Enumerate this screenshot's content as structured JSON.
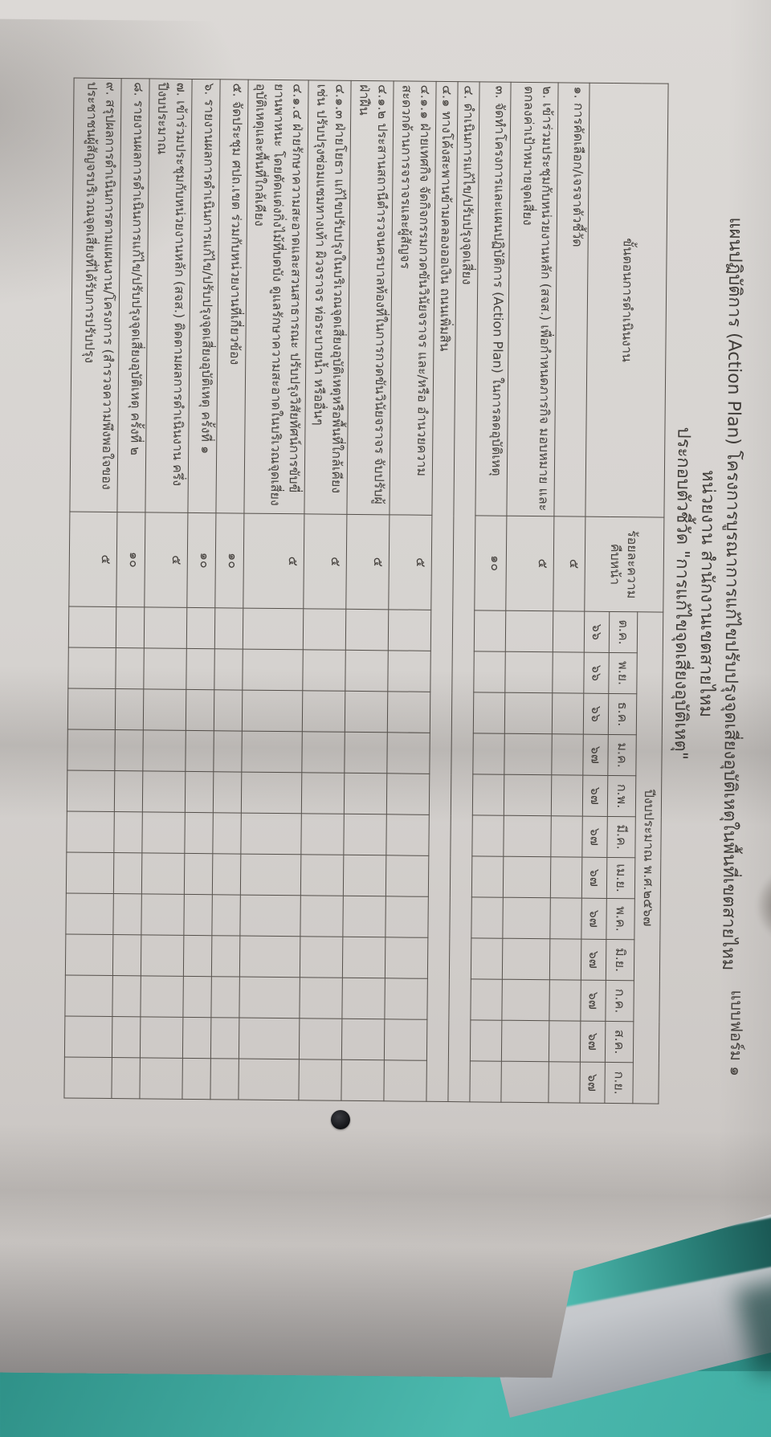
{
  "colors": {
    "background_teal": "#3ba89e",
    "background_teal_dark": "#175f59",
    "paper": "#d6d3d0",
    "table_line": "#55504b",
    "ink": "#44403c"
  },
  "artifacts": {
    "black_dot": "round black sticker on paper margin",
    "push_pin": "metal pin on under-sheet",
    "shadow_crescent": "dark shadow notch at right edge"
  },
  "form": {
    "form_label": "แบบฟอร์ม ๑",
    "title_lines": [
      "แผนปฏิบัติการ (Action Plan) โครงการบูรณาการแก้ไขปรับปรุงจุดเสี่ยงอุบัติเหตุในพื้นที่เขตสายไหม",
      "หน่วยงาน สำนักงานเขตสายไหม",
      "ประกอบตัวชี้วัด \"การแก้ไขจุดเสี่ยงอุบัติเหตุ\""
    ],
    "table": {
      "steps_header": "ขั้นตอนการดำเนินงาน",
      "progress_header_line1": "ร้อยละความ",
      "progress_header_line2": "คืบหน้า",
      "fiscal_year_header": "ปีงบประมาณ พ.ศ.๒๕๖๗",
      "months": [
        "ต.ค.",
        "พ.ย.",
        "ธ.ค.",
        "ม.ค.",
        "ก.พ.",
        "มี.ค.",
        "เม.ย.",
        "พ.ค.",
        "มิ.ย.",
        "ก.ค.",
        "ส.ค.",
        "ก.ย."
      ],
      "years": [
        "๖๖",
        "๖๖",
        "๖๖",
        "๖๗",
        "๖๗",
        "๖๗",
        "๖๗",
        "๖๗",
        "๖๗",
        "๖๗",
        "๖๗",
        "๖๗"
      ],
      "rows": [
        {
          "label": "๑. การคัดเลือก/เจรจาตัวชี้วัด",
          "progress": "๕",
          "indent": 0,
          "full_width": false
        },
        {
          "label": "๒. เข้าร่วมประชุมกับหน่วยงานหลัก (สจส.) เพื่อกำหนดภารกิจ มอบหมาย และตกลงค่าเป้าหมายจุดเสี่ยง",
          "progress": "๕",
          "indent": 0,
          "full_width": false
        },
        {
          "label": "๓. จัดทำโครงการและแผนปฏิบัติการ (Action Plan) ในการลดอุบัติเหตุ",
          "progress": "๑๐",
          "indent": 0,
          "full_width": false
        },
        {
          "label": "๔. ดำเนินการแก้ไข/ปรับปรุงจุดเสี่ยง",
          "progress": "",
          "indent": 0,
          "full_width": true
        },
        {
          "label": "๔.๑ ทางโค้งสะพานข้ามคลองออเงิน ถนนเพิ่มสิน",
          "progress": "",
          "indent": 1,
          "full_width": true
        },
        {
          "label": "๔.๑.๑ ฝ่ายเทศกิจ จัดกิจกรรมกวดขันวินัยจราจร และ/หรือ อำนวยความสะดวกด้านการจราจรและผู้สัญจร",
          "progress": "๕",
          "indent": 2,
          "full_width": false
        },
        {
          "label": "๔.๑.๒ ประสานสถานีตำรวจนครบาลท้องที่ในการกวดขันวินัยจราจร จับปรับผู้ฝ่าฝืน",
          "progress": "๕",
          "indent": 2,
          "full_width": false
        },
        {
          "label": "๔.๑.๓ ฝ่ายโยธา แก้ไขปรับปรุงในบริเวณจุดเสี่ยงอุบัติเหตุหรือพื้นที่ใกล้เคียง เช่น ปรับปรุงซ่อมแซมทางเท้า ผิวจราจร ท่อระบายน้ำ หรืออื่นๆ",
          "progress": "๕",
          "indent": 2,
          "full_width": false
        },
        {
          "label": "๔.๑.๔ ฝ่ายรักษาความสะอาดและสวนสาธารณะ ปรับปรุงวิสัยทัศน์การขับขี่ยานพาหนะ โดยตัดแต่งกิ่งไม้ที่บดบัง ดูแลรักษาความสะอาดในบริเวณจุดเสี่ยงอุบัติเหตุและพื้นที่ใกล้เคียง",
          "progress": "๕",
          "indent": 2,
          "full_width": false
        },
        {
          "label": "๕. จัดประชุม ศปถ.เขต ร่วมกับหน่วยงานที่เกี่ยวข้อง",
          "progress": "๑๐",
          "indent": 0,
          "full_width": false
        },
        {
          "label": "๖. รายงานผลการดำเนินการแก้ไข/ปรับปรุงจุดเสี่ยงอุบัติเหตุ ครั้งที่ ๑",
          "progress": "๑๐",
          "indent": 0,
          "full_width": false
        },
        {
          "label": "๗. เข้าร่วมประชุมกับหน่วยงานหลัก (สจส.) ติดตามผลการดำเนินงาน ครึ่งปีงบประมาณ",
          "progress": "๕",
          "indent": 0,
          "full_width": false
        },
        {
          "label": "๘. รายงานผลการดำเนินการแก้ไข/ปรับปรุงจุดเสี่ยงอุบัติเหตุ ครั้งที่ ๒",
          "progress": "๑๐",
          "indent": 0,
          "full_width": false
        },
        {
          "label": "๙. สรุปผลการดำเนินการตามแผนงาน/โครงการ (สำรวจความพึงพอใจของประชาชนผู้สัญจรบริเวณจุดเสี่ยงที่ได้รับการปรับปรุง",
          "progress": "๕",
          "indent": 0,
          "full_width": false
        }
      ]
    }
  }
}
